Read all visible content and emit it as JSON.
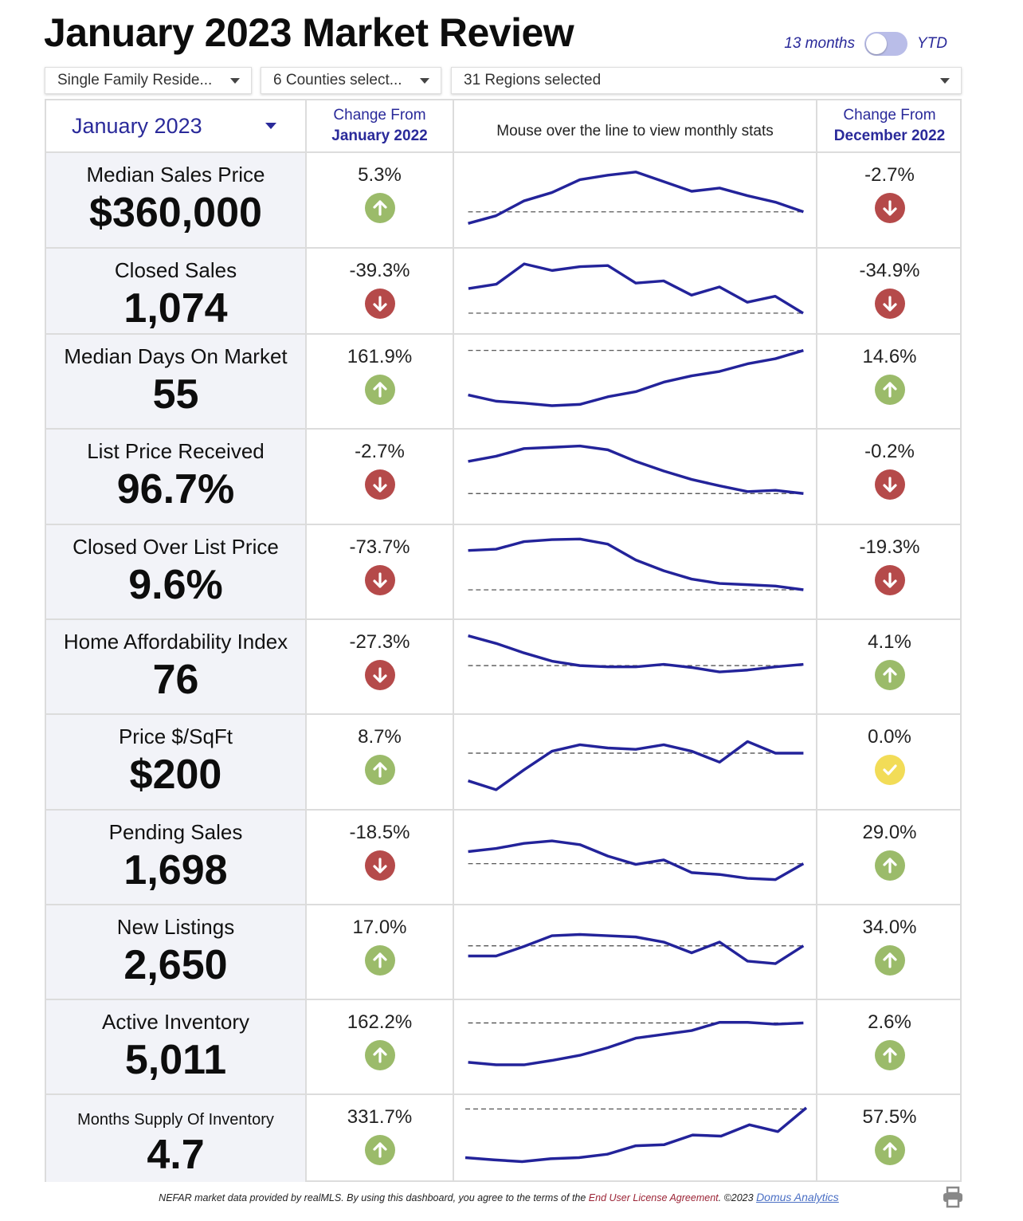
{
  "title": "January 2023 Market Review",
  "toggle": {
    "left_label": "13 months",
    "right_label": "YTD"
  },
  "filters": {
    "property_type": "Single Family Reside...",
    "counties": "6 Counties select...",
    "regions": "31 Regions selected"
  },
  "header": {
    "month": "January 2023",
    "change_from_label": "Change From",
    "yoy_period": "January 2022",
    "hover_hint": "Mouse over the line to view monthly stats",
    "mom_period": "December 2022"
  },
  "metrics": [
    {
      "label": "Median Sales Price",
      "value": "$360,000",
      "yoy": "5.3%",
      "yoy_dir": "up",
      "mom": "-2.7%",
      "mom_dir": "down",
      "spark": [
        0.1,
        0.22,
        0.45,
        0.58,
        0.78,
        0.85,
        0.9,
        0.75,
        0.6,
        0.65,
        0.53,
        0.43,
        0.28
      ],
      "ref": 0.28
    },
    {
      "label": "Closed Sales",
      "value": "1,074",
      "yoy": "-39.3%",
      "yoy_dir": "down",
      "mom": "-34.9%",
      "mom_dir": "down",
      "spark": [
        0.5,
        0.58,
        0.95,
        0.83,
        0.9,
        0.92,
        0.6,
        0.64,
        0.38,
        0.53,
        0.25,
        0.36,
        0.05
      ],
      "ref": 0.05
    },
    {
      "label": "Median Days On Market",
      "value": "55",
      "yoy": "161.9%",
      "yoy_dir": "up",
      "mom": "14.6%",
      "mom_dir": "up",
      "spark": [
        0.25,
        0.15,
        0.12,
        0.08,
        0.1,
        0.22,
        0.3,
        0.45,
        0.55,
        0.62,
        0.74,
        0.82,
        0.95
      ],
      "ref": 0.95
    },
    {
      "label": "List Price Received",
      "value": "96.7%",
      "yoy": "-2.7%",
      "yoy_dir": "down",
      "mom": "-0.2%",
      "mom_dir": "down",
      "spark": [
        0.7,
        0.78,
        0.9,
        0.92,
        0.94,
        0.88,
        0.7,
        0.55,
        0.42,
        0.32,
        0.23,
        0.25,
        0.2
      ],
      "ref": 0.2
    },
    {
      "label": "Closed Over List Price",
      "value": "9.6%",
      "yoy": "-73.7%",
      "yoy_dir": "down",
      "mom": "-19.3%",
      "mom_dir": "down",
      "spark": [
        0.8,
        0.82,
        0.94,
        0.97,
        0.98,
        0.9,
        0.65,
        0.48,
        0.35,
        0.28,
        0.26,
        0.24,
        0.18
      ],
      "ref": 0.18
    },
    {
      "label": "Home Affordability Index",
      "value": "76",
      "yoy": "-27.3%",
      "yoy_dir": "down",
      "mom": "4.1%",
      "mom_dir": "up",
      "spark": [
        0.95,
        0.83,
        0.68,
        0.55,
        0.48,
        0.46,
        0.46,
        0.5,
        0.45,
        0.38,
        0.41,
        0.46,
        0.5
      ],
      "ref": 0.48
    },
    {
      "label": "Price $/SqFt",
      "value": "$200",
      "yoy": "8.7%",
      "yoy_dir": "up",
      "mom": "0.0%",
      "mom_dir": "neutral",
      "spark": [
        0.17,
        0.03,
        0.34,
        0.63,
        0.73,
        0.68,
        0.66,
        0.73,
        0.63,
        0.46,
        0.78,
        0.6,
        0.6
      ],
      "ref": 0.6
    },
    {
      "label": "Pending Sales",
      "value": "1,698",
      "yoy": "-18.5%",
      "yoy_dir": "down",
      "mom": "29.0%",
      "mom_dir": "up",
      "spark": [
        0.55,
        0.6,
        0.68,
        0.72,
        0.66,
        0.48,
        0.35,
        0.42,
        0.22,
        0.19,
        0.13,
        0.11,
        0.36
      ],
      "ref": 0.36
    },
    {
      "label": "New Listings",
      "value": "2,650",
      "yoy": "17.0%",
      "yoy_dir": "up",
      "mom": "34.0%",
      "mom_dir": "up",
      "spark": [
        0.4,
        0.4,
        0.55,
        0.72,
        0.74,
        0.72,
        0.7,
        0.62,
        0.45,
        0.62,
        0.32,
        0.28,
        0.56
      ],
      "ref": 0.56
    },
    {
      "label": "Active Inventory",
      "value": "5,011",
      "yoy": "162.2%",
      "yoy_dir": "up",
      "mom": "2.6%",
      "mom_dir": "up",
      "spark": [
        0.22,
        0.18,
        0.18,
        0.25,
        0.33,
        0.45,
        0.6,
        0.66,
        0.72,
        0.85,
        0.85,
        0.82,
        0.84
      ],
      "ref": 0.84
    },
    {
      "label": "Months Supply Of Inventory",
      "value": "4.7",
      "yoy": "331.7%",
      "yoy_dir": "up",
      "mom": "57.5%",
      "mom_dir": "up",
      "spark": [
        0.12,
        0.08,
        0.05,
        0.1,
        0.12,
        0.18,
        0.33,
        0.35,
        0.52,
        0.5,
        0.7,
        0.58,
        1.0
      ],
      "ref": 0.98
    }
  ],
  "footer": {
    "text_before": "NEFAR market data provided by realMLS.  By using this dashboard, you agree to the terms of the ",
    "eula": "End User License Agreement",
    "text_after": ".  ©2023 ",
    "domus": "Domus Analytics"
  },
  "colors": {
    "accent": "#2a2a9a",
    "line": "#23239a",
    "up": "#9bbb6a",
    "down": "#b54a4a",
    "neutral": "#f2dc57"
  }
}
